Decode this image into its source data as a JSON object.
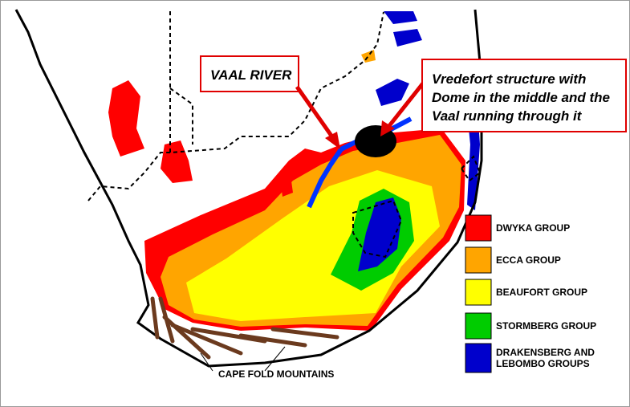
{
  "callouts": [
    {
      "lines": [
        "VAAL RIVER"
      ]
    },
    {
      "lines": [
        "Vredefort structure with",
        "Dome in the middle and the",
        "Vaal running through it"
      ]
    }
  ],
  "legend": [
    {
      "lines": [
        "DWYKA GROUP"
      ],
      "color": "#ff0000"
    },
    {
      "lines": [
        "ECCA GROUP"
      ],
      "color": "#ffa500"
    },
    {
      "lines": [
        "BEAUFORT GROUP"
      ],
      "color": "#ffff00"
    },
    {
      "lines": [
        "STORMBERG GROUP"
      ],
      "color": "#00cc00"
    },
    {
      "lines": [
        "DRAKENSBERG AND",
        "LEBOMBO GROUPS"
      ],
      "color": "#0000cc"
    }
  ],
  "mountains_label": "CAPE FOLD MOUNTAINS"
}
